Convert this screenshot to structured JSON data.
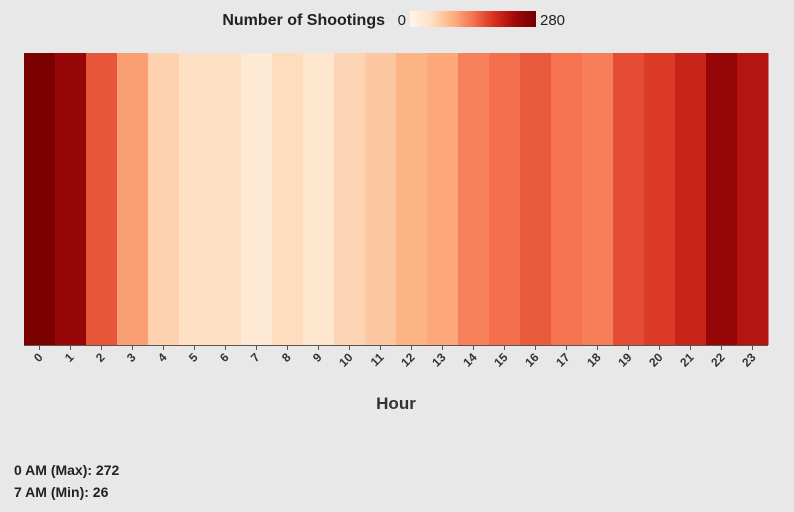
{
  "chart_data": {
    "type": "heatmap",
    "legend_title": "Number of Shootings",
    "legend_min": "0",
    "legend_max": "280",
    "color_range": [
      0,
      280
    ],
    "color_scale": [
      "#fff5eb",
      "#fee0c4",
      "#fdb383",
      "#f5734f",
      "#d7301f",
      "#a10808",
      "#730000"
    ],
    "x": [
      "0",
      "1",
      "2",
      "3",
      "4",
      "5",
      "6",
      "7",
      "8",
      "9",
      "10",
      "11",
      "12",
      "13",
      "14",
      "15",
      "16",
      "17",
      "18",
      "19",
      "20",
      "21",
      "22",
      "23"
    ],
    "values": [
      272,
      242,
      160,
      108,
      62,
      47,
      46,
      26,
      50,
      34,
      58,
      72,
      92,
      101,
      130,
      142,
      158,
      140,
      132,
      167,
      180,
      200,
      243,
      218
    ],
    "xlabel": "Hour",
    "ylabel": ""
  },
  "stats": {
    "max_label": "0 AM (Max): 272",
    "min_label": "7 AM (Min): 26"
  }
}
